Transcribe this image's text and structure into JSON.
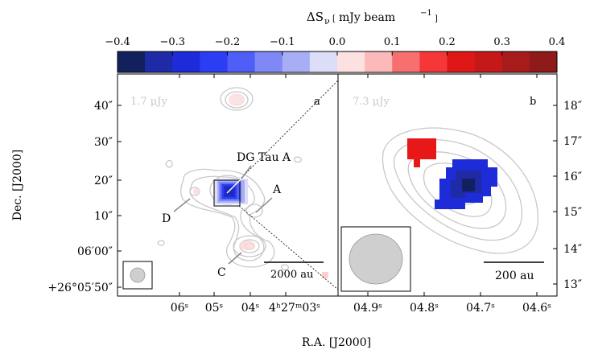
{
  "colorbar": {
    "label_symbol": "ΔS",
    "label_sub": "ν",
    "label_unit": "mJy beam",
    "label_exp": "−1",
    "ticks": [
      "−0.4",
      "−0.3",
      "−0.2",
      "−0.1",
      "0.0",
      "0.1",
      "0.2",
      "0.3",
      "0.4"
    ],
    "levels": [
      -0.4,
      -0.35,
      -0.3,
      -0.25,
      -0.2,
      -0.15,
      -0.1,
      -0.05,
      0.0,
      0.05,
      0.1,
      0.15,
      0.2,
      0.25,
      0.3,
      0.35,
      0.4
    ],
    "colors": [
      "#13205e",
      "#1f2ba6",
      "#1d2cd8",
      "#2b3ef3",
      "#4f5ef6",
      "#7f89f6",
      "#a8aef6",
      "#dcdef8",
      "#fde1e1",
      "#fbb9b9",
      "#f86f6f",
      "#f53737",
      "#e01717",
      "#c51818",
      "#a81b1b",
      "#8e1a1a"
    ]
  },
  "panel_a": {
    "letter": "a",
    "noise_label": "1.7 μJy",
    "labels": {
      "dg": "DG Tau A",
      "a": "A",
      "c": "C",
      "d": "D"
    },
    "scalebar_label": "2000 au",
    "y_ticks": [
      "40″",
      "30″",
      "20″",
      "10″",
      "06′00″",
      "+26°05′50″"
    ],
    "x_ticks": [
      "06ˢ",
      "05ˢ",
      "04ˢ",
      "4ʰ27ᵐ03ˢ"
    ]
  },
  "panel_b": {
    "letter": "b",
    "noise_label": "7.3 μJy",
    "scalebar_label": "200 au",
    "y_ticks": [
      "18″",
      "17″",
      "16″",
      "15″",
      "14″",
      "13″"
    ],
    "x_ticks": [
      "04.9ˢ",
      "04.8ˢ",
      "04.7ˢ",
      "04.6ˢ"
    ]
  },
  "axes": {
    "xlabel": "R.A. [J2000]",
    "ylabel": "Dec. [J2000]"
  },
  "style": {
    "contour_color": "#c8c8c8",
    "beam_fill": "#cfcfcf"
  }
}
